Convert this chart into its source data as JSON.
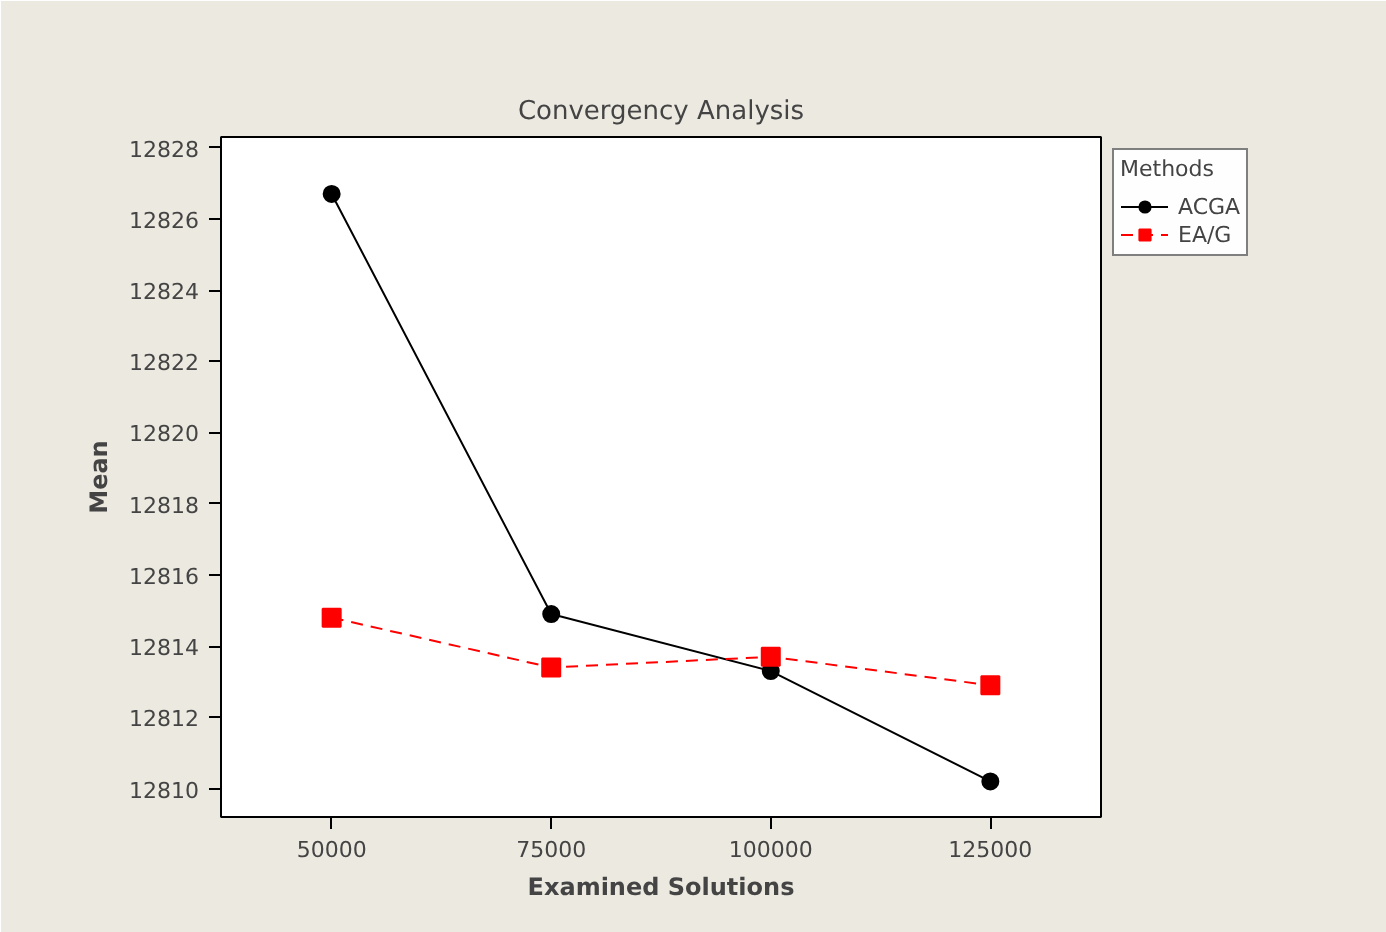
{
  "chart_data": {
    "type": "line",
    "title": "Convergency Analysis",
    "xlabel": "Examined Solutions",
    "ylabel": "Mean",
    "legend_title": "Methods",
    "legend": "top right",
    "x": [
      50000,
      75000,
      100000,
      125000
    ],
    "xlim": [
      37400,
      137600
    ],
    "xticks": [
      50000,
      75000,
      100000,
      125000
    ],
    "ylim": [
      12809.2,
      12828.3
    ],
    "yticks": [
      12810,
      12812,
      12814,
      12816,
      12818,
      12820,
      12822,
      12824,
      12826,
      12828
    ],
    "grid": false,
    "series": [
      {
        "name": "ACGA",
        "color": "#000000",
        "marker": "circle",
        "line_style": "solid",
        "values": [
          12826.7,
          12814.9,
          12813.3,
          12810.2
        ]
      },
      {
        "name": "EA/G",
        "color": "#ff0000",
        "marker": "square",
        "line_style": "dashed",
        "values": [
          12814.8,
          12813.4,
          12813.7,
          12812.9
        ]
      }
    ]
  }
}
